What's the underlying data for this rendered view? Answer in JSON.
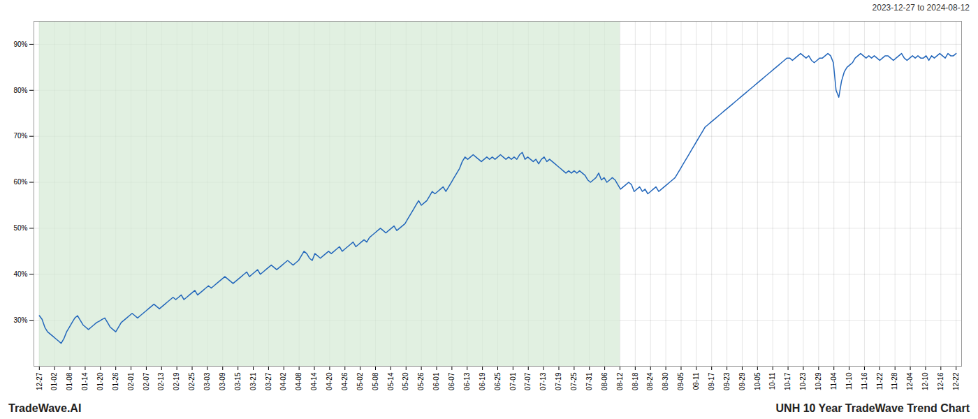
{
  "chart_data": {
    "type": "line",
    "title": "UNH 10 Year TradeWave Trend Chart",
    "subtitle": "2023-12-27 to 2024-08-12",
    "annotations": [
      "TradeWave.AI"
    ],
    "color": "#2266bb",
    "grid": true,
    "span": {
      "start": "12-27",
      "end": "08-12",
      "color": "#d4ead4"
    },
    "ylim": [
      20,
      95
    ],
    "yticks": [
      {
        "value": 30,
        "label": "30%"
      },
      {
        "value": 40,
        "label": "40%"
      },
      {
        "value": 50,
        "label": "50%"
      },
      {
        "value": 60,
        "label": "60%"
      },
      {
        "value": 70,
        "label": "70%"
      },
      {
        "value": 80,
        "label": "80%"
      },
      {
        "value": 90,
        "label": "90%"
      }
    ],
    "xlim": [
      -2,
      338
    ],
    "xticks": [
      {
        "value": 0,
        "label": "12-27"
      },
      {
        "value": 5.6,
        "label": "01-02"
      },
      {
        "value": 11.2,
        "label": "01-08"
      },
      {
        "value": 16.8,
        "label": "01-14"
      },
      {
        "value": 22.4,
        "label": "01-20"
      },
      {
        "value": 28,
        "label": "01-26"
      },
      {
        "value": 33.6,
        "label": "02-01"
      },
      {
        "value": 39.2,
        "label": "02-07"
      },
      {
        "value": 44.8,
        "label": "02-13"
      },
      {
        "value": 50.4,
        "label": "02-19"
      },
      {
        "value": 56,
        "label": "02-25"
      },
      {
        "value": 61.6,
        "label": "03-03"
      },
      {
        "value": 67.2,
        "label": "03-09"
      },
      {
        "value": 72.8,
        "label": "03-15"
      },
      {
        "value": 78.4,
        "label": "03-21"
      },
      {
        "value": 84,
        "label": "03-27"
      },
      {
        "value": 89.6,
        "label": "04-02"
      },
      {
        "value": 95.2,
        "label": "04-08"
      },
      {
        "value": 100.8,
        "label": "04-14"
      },
      {
        "value": 106.4,
        "label": "04-20"
      },
      {
        "value": 112,
        "label": "04-26"
      },
      {
        "value": 117.6,
        "label": "05-02"
      },
      {
        "value": 123.2,
        "label": "05-08"
      },
      {
        "value": 128.8,
        "label": "05-14"
      },
      {
        "value": 134.4,
        "label": "05-20"
      },
      {
        "value": 140,
        "label": "05-26"
      },
      {
        "value": 145.6,
        "label": "06-01"
      },
      {
        "value": 151.2,
        "label": "06-07"
      },
      {
        "value": 156.8,
        "label": "06-13"
      },
      {
        "value": 162.4,
        "label": "06-19"
      },
      {
        "value": 168,
        "label": "06-25"
      },
      {
        "value": 173.6,
        "label": "07-01"
      },
      {
        "value": 179.2,
        "label": "07-07"
      },
      {
        "value": 184.8,
        "label": "07-13"
      },
      {
        "value": 190.4,
        "label": "07-19"
      },
      {
        "value": 196,
        "label": "07-25"
      },
      {
        "value": 201.6,
        "label": "07-31"
      },
      {
        "value": 207.2,
        "label": "08-06"
      },
      {
        "value": 212.8,
        "label": "08-12"
      },
      {
        "value": 218.4,
        "label": "08-18"
      },
      {
        "value": 224,
        "label": "08-24"
      },
      {
        "value": 229.6,
        "label": "08-30"
      },
      {
        "value": 235.2,
        "label": "09-05"
      },
      {
        "value": 240.8,
        "label": "09-11"
      },
      {
        "value": 246.4,
        "label": "09-17"
      },
      {
        "value": 252,
        "label": "09-23"
      },
      {
        "value": 257.6,
        "label": "09-29"
      },
      {
        "value": 263.2,
        "label": "10-05"
      },
      {
        "value": 268.8,
        "label": "10-11"
      },
      {
        "value": 274.4,
        "label": "10-17"
      },
      {
        "value": 280,
        "label": "10-23"
      },
      {
        "value": 285.6,
        "label": "10-29"
      },
      {
        "value": 291.2,
        "label": "11-04"
      },
      {
        "value": 296.8,
        "label": "11-10"
      },
      {
        "value": 302.4,
        "label": "11-16"
      },
      {
        "value": 308,
        "label": "11-22"
      },
      {
        "value": 313.6,
        "label": "11-28"
      },
      {
        "value": 319.2,
        "label": "12-04"
      },
      {
        "value": 324.8,
        "label": "12-10"
      },
      {
        "value": 330.4,
        "label": "12-16"
      },
      {
        "value": 336,
        "label": "12-22"
      }
    ],
    "values": [
      31.0,
      30.2,
      28.5,
      27.5,
      27.0,
      26.5,
      26.0,
      25.5,
      25.0,
      26.0,
      27.5,
      28.5,
      29.5,
      30.5,
      31.0,
      30.0,
      29.0,
      28.5,
      28.0,
      28.5,
      29.0,
      29.5,
      29.8,
      30.2,
      30.5,
      29.5,
      28.5,
      28.0,
      27.5,
      28.5,
      29.5,
      30.0,
      30.5,
      31.0,
      31.5,
      31.0,
      30.5,
      31.0,
      31.5,
      32.0,
      32.5,
      33.0,
      33.5,
      33.0,
      32.5,
      33.0,
      33.5,
      34.0,
      34.5,
      35.0,
      34.5,
      35.0,
      35.5,
      34.5,
      35.0,
      35.5,
      36.0,
      36.5,
      35.5,
      36.0,
      36.5,
      37.0,
      37.5,
      37.0,
      37.5,
      38.0,
      38.5,
      39.0,
      39.5,
      39.0,
      38.5,
      38.0,
      38.5,
      39.0,
      39.5,
      40.0,
      40.5,
      39.5,
      40.0,
      40.5,
      41.0,
      40.0,
      40.5,
      41.0,
      41.5,
      42.0,
      41.5,
      41.0,
      41.5,
      42.0,
      42.5,
      43.0,
      42.5,
      42.0,
      42.5,
      43.0,
      44.0,
      45.0,
      44.5,
      43.5,
      43.0,
      44.5,
      44.0,
      43.5,
      44.0,
      44.5,
      45.0,
      44.5,
      45.0,
      45.5,
      46.0,
      45.0,
      45.5,
      46.0,
      46.5,
      47.0,
      46.0,
      46.5,
      47.0,
      47.5,
      47.0,
      48.0,
      48.5,
      49.0,
      49.5,
      50.0,
      49.5,
      49.0,
      49.5,
      50.0,
      50.5,
      49.5,
      50.0,
      50.5,
      51.0,
      52.0,
      53.0,
      54.0,
      55.0,
      56.0,
      55.0,
      55.5,
      56.0,
      57.0,
      58.0,
      57.5,
      58.0,
      58.5,
      59.0,
      58.0,
      59.0,
      60.0,
      61.0,
      62.0,
      63.0,
      64.5,
      65.5,
      65.0,
      65.5,
      66.0,
      65.5,
      65.0,
      64.5,
      65.0,
      65.5,
      65.0,
      65.5,
      65.0,
      65.5,
      66.0,
      65.5,
      65.0,
      65.5,
      65.0,
      65.5,
      65.0,
      66.0,
      66.5,
      65.0,
      65.5,
      65.0,
      64.5,
      65.0,
      64.0,
      65.0,
      65.5,
      64.5,
      65.0,
      64.5,
      64.0,
      63.5,
      63.0,
      62.5,
      62.0,
      62.5,
      62.0,
      62.5,
      62.0,
      62.5,
      62.0,
      61.5,
      60.5,
      60.0,
      60.5,
      61.0,
      62.0,
      60.5,
      61.0,
      60.0,
      60.5,
      61.0,
      60.5,
      59.5,
      58.5,
      59.0,
      59.5,
      60.0,
      59.5,
      58.0,
      58.5,
      59.0,
      58.0,
      58.5,
      57.5,
      58.0,
      58.5,
      59.0,
      58.0,
      58.5,
      59.0,
      59.5,
      60.0,
      60.5,
      61.0,
      62.0,
      63.0,
      64.0,
      65.0,
      66.0,
      67.0,
      68.0,
      69.0,
      70.0,
      71.0,
      72.0,
      72.5,
      73.0,
      73.5,
      74.0,
      74.5,
      75.0,
      75.5,
      76.0,
      76.5,
      77.0,
      77.5,
      78.0,
      78.5,
      79.0,
      79.5,
      80.0,
      80.5,
      81.0,
      81.5,
      82.0,
      82.5,
      83.0,
      83.5,
      84.0,
      84.5,
      85.0,
      85.5,
      86.0,
      86.5,
      87.0,
      87.0,
      86.5,
      87.0,
      87.5,
      88.0,
      87.5,
      87.0,
      87.5,
      86.5,
      86.0,
      86.5,
      87.0,
      87.0,
      87.5,
      88.0,
      87.5,
      86.0,
      80.0,
      78.5,
      82.0,
      84.0,
      85.0,
      85.5,
      86.0,
      87.0,
      87.5,
      88.0,
      87.5,
      87.0,
      87.5,
      87.0,
      87.5,
      87.0,
      86.5,
      87.0,
      87.5,
      87.5,
      87.0,
      86.5,
      87.0,
      87.5,
      88.0,
      87.0,
      86.5,
      87.0,
      87.5,
      87.0,
      87.5,
      87.0,
      87.0,
      87.5,
      86.5,
      87.5,
      87.0,
      87.5,
      88.0,
      87.5,
      87.0,
      88.0,
      87.5,
      87.5,
      88.0
    ]
  }
}
